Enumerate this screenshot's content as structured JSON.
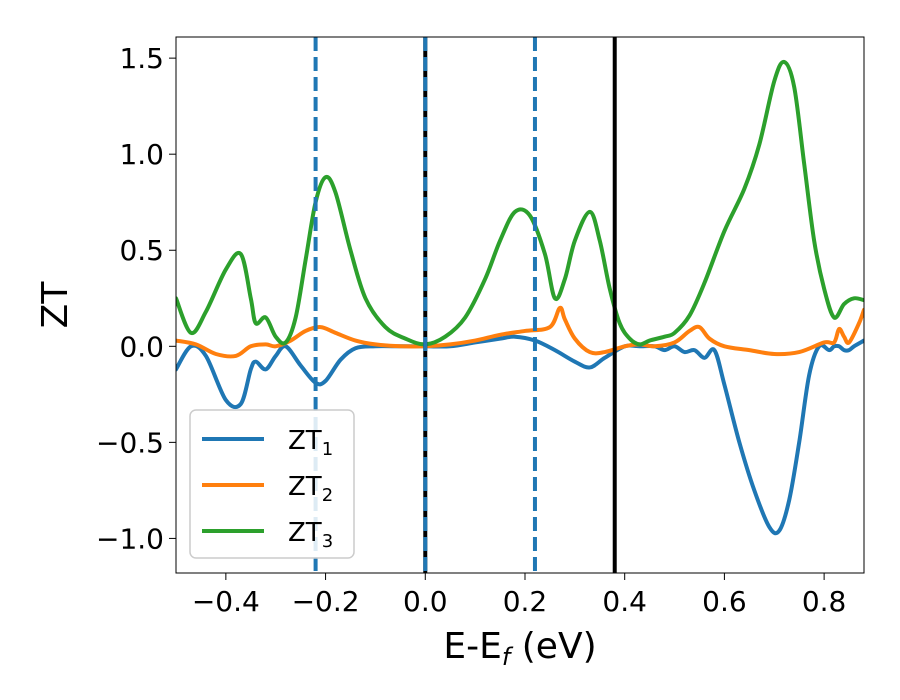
{
  "chart_data": {
    "type": "line",
    "xlabel": "E-E",
    "xlabel_sub": "f",
    "xlabel_units": " (eV)",
    "ylabel": "ZT",
    "xlim": [
      -0.5,
      0.88
    ],
    "ylim": [
      -1.18,
      1.61
    ],
    "xticks": [
      -0.4,
      -0.2,
      0.0,
      0.2,
      0.4,
      0.6,
      0.8
    ],
    "xtick_labels": [
      "−0.4",
      "−0.2",
      "0.0",
      "0.2",
      "0.4",
      "0.6",
      "0.8"
    ],
    "yticks": [
      -1.0,
      -0.5,
      0.0,
      0.5,
      1.0,
      1.5
    ],
    "ytick_labels": [
      "−1.0",
      "−0.5",
      "0.0",
      "0.5",
      "1.0",
      "1.5"
    ],
    "grid": false,
    "legend_position": "lower-left",
    "series": [
      {
        "name": "ZT",
        "name_sub": "1",
        "color": "#1f77b4",
        "x": [
          -0.5,
          -0.47,
          -0.44,
          -0.4,
          -0.37,
          -0.35,
          -0.34,
          -0.32,
          -0.3,
          -0.28,
          -0.25,
          -0.22,
          -0.2,
          -0.17,
          -0.14,
          -0.1,
          -0.05,
          0.0,
          0.05,
          0.1,
          0.15,
          0.18,
          0.22,
          0.26,
          0.3,
          0.33,
          0.36,
          0.4,
          0.43,
          0.46,
          0.48,
          0.5,
          0.52,
          0.54,
          0.56,
          0.58,
          0.6,
          0.63,
          0.66,
          0.69,
          0.71,
          0.73,
          0.75,
          0.77,
          0.79,
          0.81,
          0.82,
          0.83,
          0.84,
          0.85,
          0.86,
          0.88
        ],
        "y": [
          -0.12,
          0.0,
          -0.05,
          -0.28,
          -0.3,
          -0.12,
          -0.08,
          -0.12,
          -0.05,
          0.0,
          -0.1,
          -0.19,
          -0.18,
          -0.07,
          -0.01,
          0.0,
          0.0,
          0.0,
          0.0,
          0.02,
          0.04,
          0.05,
          0.03,
          -0.02,
          -0.08,
          -0.11,
          -0.06,
          0.0,
          0.0,
          0.0,
          -0.02,
          0.0,
          -0.03,
          -0.02,
          -0.06,
          -0.02,
          -0.2,
          -0.5,
          -0.75,
          -0.94,
          -0.96,
          -0.8,
          -0.5,
          -0.15,
          0.0,
          -0.02,
          0.0,
          0.0,
          -0.02,
          -0.02,
          0.0,
          0.03
        ]
      },
      {
        "name": "ZT",
        "name_sub": "2",
        "color": "#ff7f0e",
        "x": [
          -0.5,
          -0.46,
          -0.42,
          -0.38,
          -0.35,
          -0.32,
          -0.3,
          -0.27,
          -0.24,
          -0.21,
          -0.18,
          -0.14,
          -0.1,
          -0.05,
          0.0,
          0.05,
          0.1,
          0.15,
          0.2,
          0.25,
          0.27,
          0.28,
          0.3,
          0.33,
          0.36,
          0.4,
          0.43,
          0.46,
          0.5,
          0.53,
          0.55,
          0.57,
          0.6,
          0.65,
          0.7,
          0.75,
          0.8,
          0.82,
          0.83,
          0.84,
          0.85,
          0.87,
          0.88
        ],
        "y": [
          0.03,
          0.01,
          -0.04,
          -0.05,
          0.0,
          0.01,
          0.0,
          0.03,
          0.08,
          0.1,
          0.07,
          0.03,
          0.01,
          0.0,
          0.0,
          0.01,
          0.03,
          0.06,
          0.08,
          0.1,
          0.2,
          0.14,
          0.04,
          -0.03,
          -0.03,
          0.0,
          0.01,
          0.0,
          0.02,
          0.08,
          0.1,
          0.04,
          0.0,
          -0.02,
          -0.04,
          -0.03,
          0.02,
          0.02,
          0.09,
          0.05,
          0.02,
          0.12,
          0.19
        ]
      },
      {
        "name": "ZT",
        "name_sub": "3",
        "color": "#2ca02c",
        "x": [
          -0.5,
          -0.47,
          -0.44,
          -0.4,
          -0.37,
          -0.35,
          -0.34,
          -0.32,
          -0.3,
          -0.28,
          -0.26,
          -0.24,
          -0.22,
          -0.2,
          -0.18,
          -0.15,
          -0.12,
          -0.08,
          -0.04,
          0.0,
          0.04,
          0.08,
          0.12,
          0.15,
          0.18,
          0.21,
          0.24,
          0.26,
          0.28,
          0.3,
          0.33,
          0.35,
          0.37,
          0.39,
          0.41,
          0.43,
          0.45,
          0.48,
          0.5,
          0.53,
          0.56,
          0.6,
          0.64,
          0.67,
          0.7,
          0.72,
          0.74,
          0.76,
          0.78,
          0.8,
          0.82,
          0.84,
          0.86,
          0.88
        ],
        "y": [
          0.25,
          0.07,
          0.18,
          0.4,
          0.48,
          0.25,
          0.12,
          0.15,
          0.05,
          0.02,
          0.15,
          0.45,
          0.75,
          0.88,
          0.8,
          0.5,
          0.25,
          0.1,
          0.04,
          0.01,
          0.05,
          0.15,
          0.35,
          0.55,
          0.7,
          0.68,
          0.48,
          0.25,
          0.35,
          0.55,
          0.7,
          0.55,
          0.3,
          0.12,
          0.04,
          0.01,
          0.03,
          0.05,
          0.07,
          0.16,
          0.33,
          0.6,
          0.82,
          1.05,
          1.38,
          1.48,
          1.35,
          0.95,
          0.55,
          0.3,
          0.15,
          0.22,
          0.25,
          0.24
        ]
      }
    ],
    "vlines": [
      {
        "x": -0.22,
        "color": "#1f77b4",
        "style": "dashed"
      },
      {
        "x": 0.22,
        "color": "#1f77b4",
        "style": "dashed"
      },
      {
        "x": 0.0,
        "color": "#000000",
        "style": "solid"
      },
      {
        "x": 0.0,
        "color": "#1f77b4",
        "style": "dashed"
      },
      {
        "x": 0.38,
        "color": "#000000",
        "style": "solid"
      }
    ]
  }
}
